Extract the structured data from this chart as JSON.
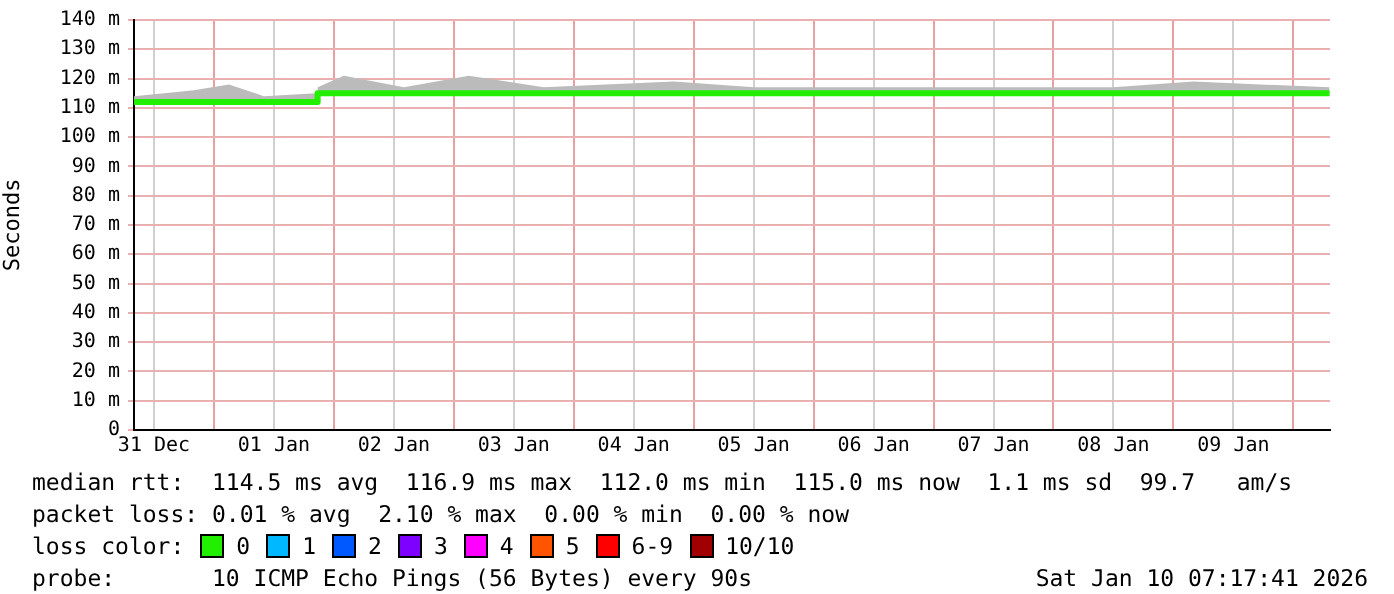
{
  "chart_data": {
    "type": "line",
    "ylabel": "Seconds",
    "legend_title": "loss color:",
    "legend": "bottom",
    "grid": true,
    "marker": "none",
    "line_style": "solid",
    "xlim": [
      "2025-12-31T08:00",
      "2026-01-10T07:20"
    ],
    "xticks": [
      {
        "value": "2025-12-31T12:00",
        "label": "31 Dec"
      },
      {
        "value": "2026-01-01T00:00",
        "label": null
      },
      {
        "value": "2026-01-01T12:00",
        "label": "01 Jan"
      },
      {
        "value": "2026-01-02T00:00",
        "label": null
      },
      {
        "value": "2026-01-02T12:00",
        "label": "02 Jan"
      },
      {
        "value": "2026-01-03T00:00",
        "label": null
      },
      {
        "value": "2026-01-03T12:00",
        "label": "03 Jan"
      },
      {
        "value": "2026-01-04T00:00",
        "label": null
      },
      {
        "value": "2026-01-04T12:00",
        "label": "04 Jan"
      },
      {
        "value": "2026-01-05T00:00",
        "label": null
      },
      {
        "value": "2026-01-05T12:00",
        "label": "05 Jan"
      },
      {
        "value": "2026-01-06T00:00",
        "label": null
      },
      {
        "value": "2026-01-06T12:00",
        "label": "06 Jan"
      },
      {
        "value": "2026-01-07T00:00",
        "label": null
      },
      {
        "value": "2026-01-07T12:00",
        "label": "07 Jan"
      },
      {
        "value": "2026-01-08T00:00",
        "label": null
      },
      {
        "value": "2026-01-08T12:00",
        "label": "08 Jan"
      },
      {
        "value": "2026-01-09T00:00",
        "label": null
      },
      {
        "value": "2026-01-09T12:00",
        "label": "09 Jan"
      },
      {
        "value": "2026-01-10T00:00",
        "label": null
      }
    ],
    "ylim": [
      0,
      140
    ],
    "yticks": [
      0,
      {
        "value": 10,
        "label": "10 m"
      },
      {
        "value": 20,
        "label": "20 m"
      },
      {
        "value": 30,
        "label": "30 m"
      },
      {
        "value": 40,
        "label": "40 m"
      },
      {
        "value": 50,
        "label": "50 m"
      },
      {
        "value": 60,
        "label": "60 m"
      },
      {
        "value": 70,
        "label": "70 m"
      },
      {
        "value": 80,
        "label": "80 m"
      },
      {
        "value": 90,
        "label": "90 m"
      },
      {
        "value": 100,
        "label": "100 m"
      },
      {
        "value": 110,
        "label": "110 m"
      },
      {
        "value": 120,
        "label": "120 m"
      },
      {
        "value": 130,
        "label": "130 m"
      },
      {
        "value": 140,
        "label": "140 m"
      }
    ],
    "series": [
      {
        "name": "0",
        "color": "#22ee00",
        "x": [
          "2025-12-31T08:00",
          "2025-12-31T20:00",
          "2026-01-01T03:00",
          "2026-01-01T10:00",
          "2026-01-01T20:30",
          "2026-01-01T20:45",
          "2026-01-02T02:00",
          "2026-01-02T14:00",
          "2026-01-03T03:00",
          "2026-01-03T18:00",
          "2026-01-04T20:00",
          "2026-01-05T12:00",
          "2026-01-06T12:00",
          "2026-01-08T12:00",
          "2026-01-09T04:00",
          "2026-01-10T07:15"
        ],
        "values": [
          112,
          112,
          112,
          112,
          112,
          115,
          115,
          115,
          115,
          115,
          115,
          115,
          115,
          115,
          115,
          115
        ],
        "lower": [
          112,
          112,
          112,
          112,
          112,
          115,
          115,
          115,
          115,
          115,
          115,
          115,
          115,
          115,
          115,
          115
        ],
        "upper": [
          114,
          116,
          118,
          114,
          115,
          117,
          121,
          117,
          121,
          117,
          119,
          117,
          117,
          117,
          119,
          117
        ]
      },
      {
        "name": "1",
        "color": "#00b8ff"
      },
      {
        "name": "2",
        "color": "#0059ff"
      },
      {
        "name": "3",
        "color": "#7e00ff"
      },
      {
        "name": "4",
        "color": "#ff00ff"
      },
      {
        "name": "5",
        "color": "#ff5500"
      },
      {
        "name": "6-9",
        "color": "#ff0000"
      },
      {
        "name": "10/10",
        "color": "#a10000"
      }
    ],
    "annotations": [
      "median rtt:  114.5 ms avg  116.9 ms max  112.0 ms min  115.0 ms now  1.1 ms sd  99.7   am/s",
      "packet loss: 0.01 % avg  2.10 % max  0.00 % min  0.00 % now",
      "probe:       10 ICMP Echo Pings (56 Bytes) every 90s",
      "Sat Jan 10 07:17:41 2026"
    ]
  }
}
